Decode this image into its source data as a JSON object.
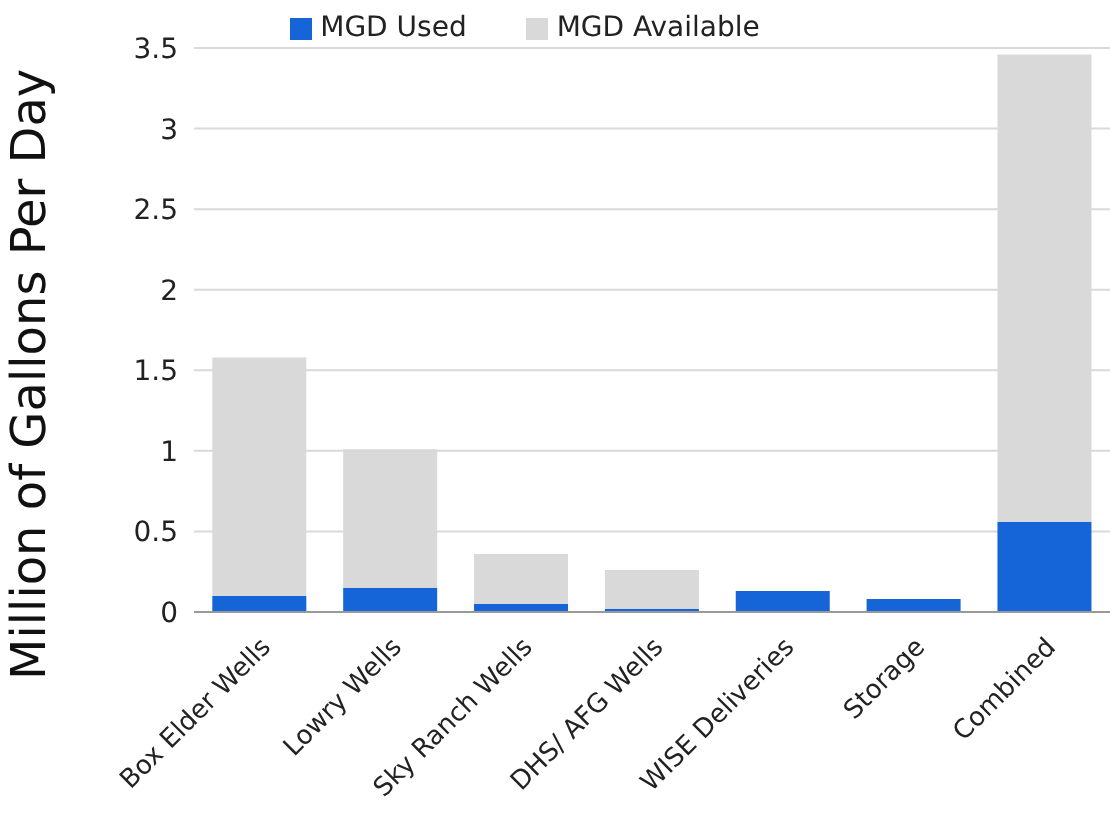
{
  "chart_data": {
    "type": "bar",
    "stacked": true,
    "ylabel": "Million of Gallons Per Day",
    "categories": [
      "Box Elder Wells",
      "Lowry Wells",
      "Sky Ranch Wells",
      "DHS/ AFG Wells",
      "WISE Deliveries",
      "Storage",
      "Combined"
    ],
    "series": [
      {
        "name": "MGD Used",
        "color": "#1565d8",
        "values": [
          0.1,
          0.15,
          0.05,
          0.02,
          0.13,
          0.08,
          0.56
        ]
      },
      {
        "name": "MGD Available",
        "color": "#d9d9d9",
        "values": [
          1.48,
          0.86,
          0.31,
          0.24,
          0,
          0,
          2.9
        ]
      }
    ],
    "ylim": [
      0,
      3.5
    ],
    "yticks": [
      0,
      0.5,
      1,
      1.5,
      2,
      2.5,
      3,
      3.5
    ],
    "grid": "y",
    "legend": "top"
  }
}
